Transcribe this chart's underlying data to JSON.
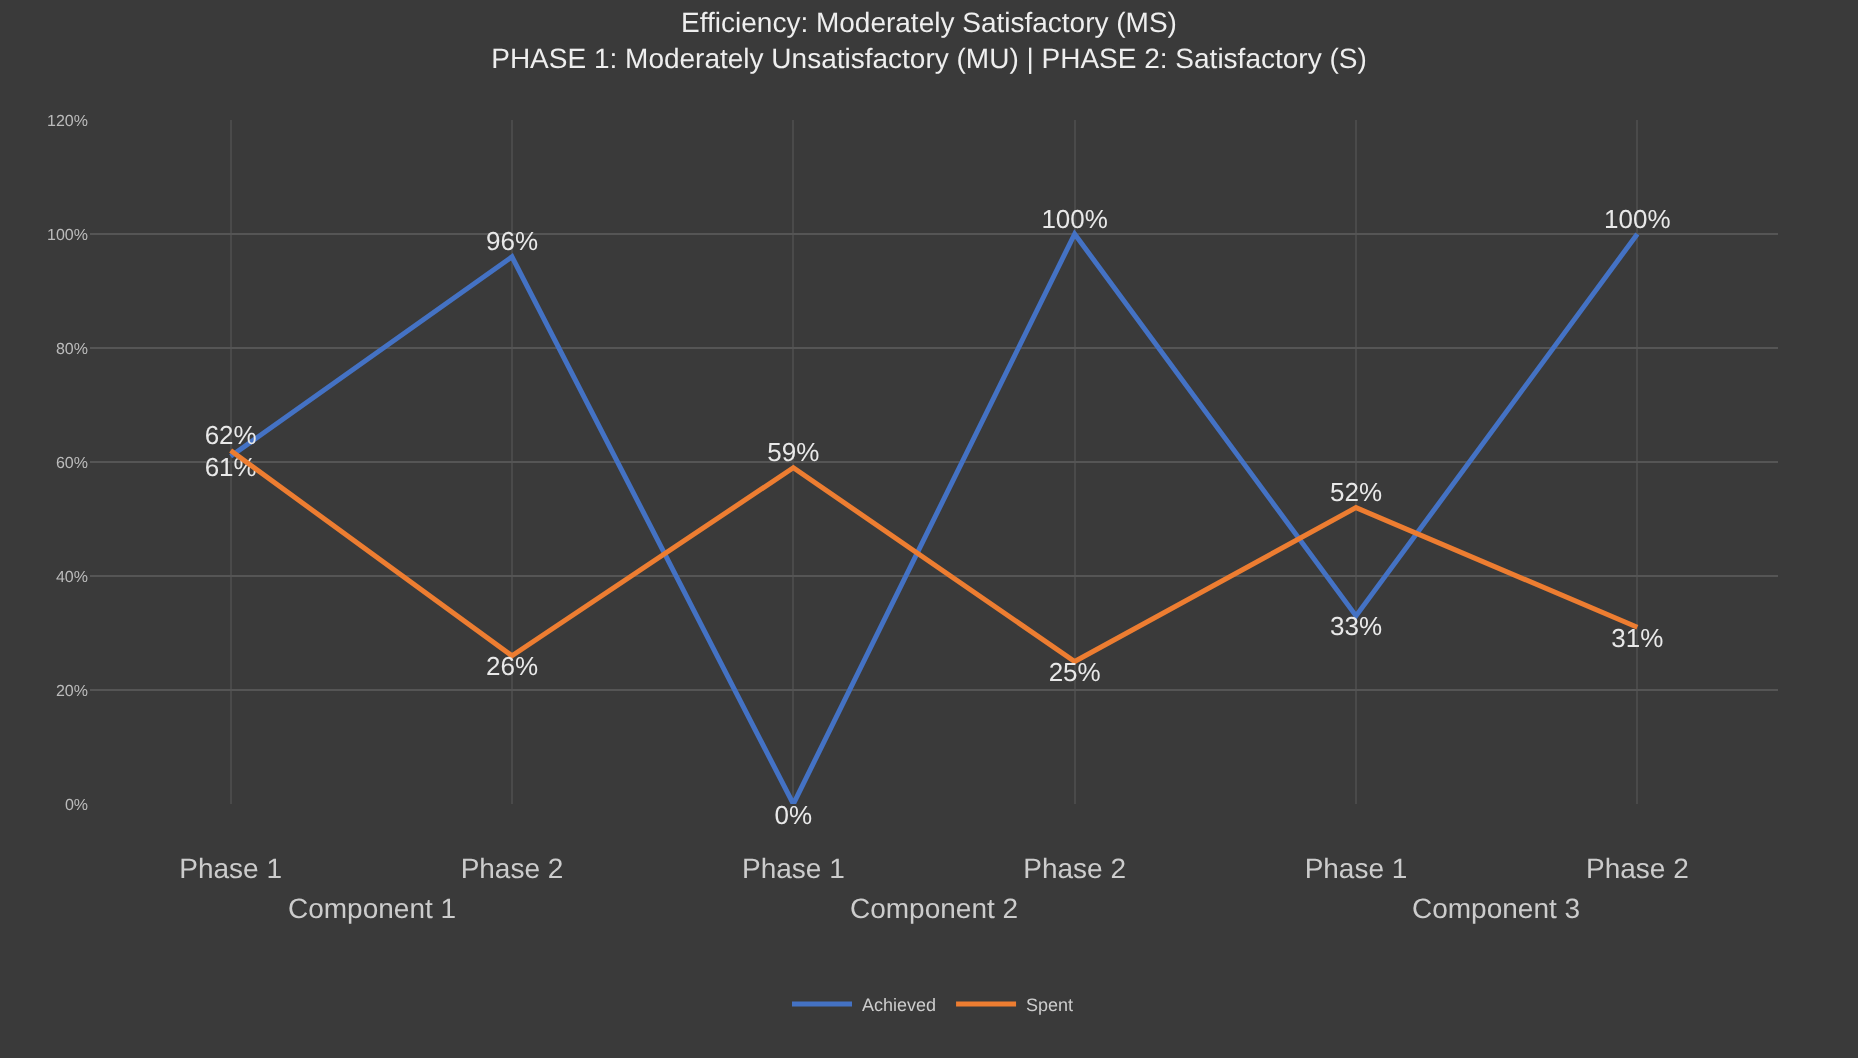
{
  "chart_data": {
    "type": "line",
    "title": "Efficiency: Moderately Satisfactory (MS)",
    "subtitle": "PHASE 1: Moderately Unsatisfactory (MU) | PHASE 2: Satisfactory (S)",
    "categories": [
      "Phase 1",
      "Phase 2",
      "Phase 1",
      "Phase 2",
      "Phase 1",
      "Phase 2"
    ],
    "annotations": [
      "Component 1",
      "Component 2",
      "Component 3"
    ],
    "series": [
      {
        "name": "Achieved",
        "color": "#4472c4",
        "values": [
          61,
          96,
          0,
          100,
          33,
          100
        ],
        "value_labels": [
          "61%",
          "96%",
          "0%",
          "100%",
          "33%",
          "100%"
        ]
      },
      {
        "name": "Spent",
        "color": "#ed7d31",
        "values": [
          62,
          26,
          59,
          25,
          52,
          31
        ],
        "value_labels": [
          "62%",
          "26%",
          "59%",
          "25%",
          "52%",
          "31%"
        ]
      }
    ],
    "ylim": [
      0,
      120
    ],
    "yticks": [
      {
        "value": 0,
        "label": "0%"
      },
      {
        "value": 20,
        "label": "20%"
      },
      {
        "value": 40,
        "label": "40%"
      },
      {
        "value": 60,
        "label": "60%"
      },
      {
        "value": 80,
        "label": "80%"
      },
      {
        "value": 100,
        "label": "100%"
      },
      {
        "value": 120,
        "label": "120%"
      }
    ],
    "grid": true,
    "legend": "bottom",
    "marker": "none",
    "line_style": "solid"
  }
}
